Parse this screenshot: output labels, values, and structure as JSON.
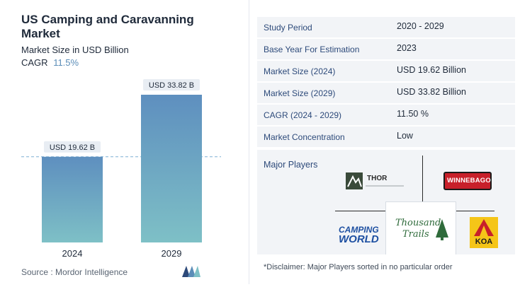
{
  "report": {
    "title": "US Camping and Caravanning Market",
    "subtitle": "Market Size in USD Billion",
    "cagr_label": "CAGR",
    "cagr_value": "11.5%",
    "source": "Source :  Mordor Intelligence"
  },
  "chart_data": {
    "type": "bar",
    "categories": [
      "2024",
      "2029"
    ],
    "values": [
      19.62,
      33.82
    ],
    "data_labels": [
      "USD 19.62 B",
      "USD 33.82 B"
    ],
    "title": "US Camping and Caravanning Market",
    "ylabel": "Market Size in USD Billion",
    "xlabel": "",
    "ylim": [
      0,
      33.82
    ],
    "reference_line": 19.62,
    "bar_color_top": "#5e8fbf",
    "bar_color_bottom": "#7ec0c6",
    "grid": false
  },
  "table": {
    "rows": [
      {
        "key": "Study Period",
        "value": "2020 - 2029"
      },
      {
        "key": "Base Year For Estimation",
        "value": "2023"
      },
      {
        "key": "Market Size (2024)",
        "value": "USD 19.62 Billion"
      },
      {
        "key": "Market Size (2029)",
        "value": "USD 33.82 Billion"
      },
      {
        "key": "CAGR (2024 - 2029)",
        "value": "11.50 %"
      },
      {
        "key": "Market Concentration",
        "value": "Low"
      }
    ]
  },
  "players": {
    "title": "Major Players",
    "logos": [
      "Thor Industries",
      "Winnebago",
      "Camping World",
      "Thousand Trails",
      "KOA"
    ],
    "thor_text": "THOR",
    "winnebago_text": "WINNEBAGO",
    "camping_text_1": "CAMPING",
    "camping_text_2": "WORLD",
    "thousand_text_1": "Thousand",
    "thousand_text_2": "Trails",
    "koa_text": "KOA",
    "disclaimer": "*Disclaimer: Major Players sorted in no particular order"
  },
  "colors": {
    "accent": "#5b8db8",
    "label_bg": "#e8edf3",
    "dashed_line": "#7fb0d4"
  }
}
